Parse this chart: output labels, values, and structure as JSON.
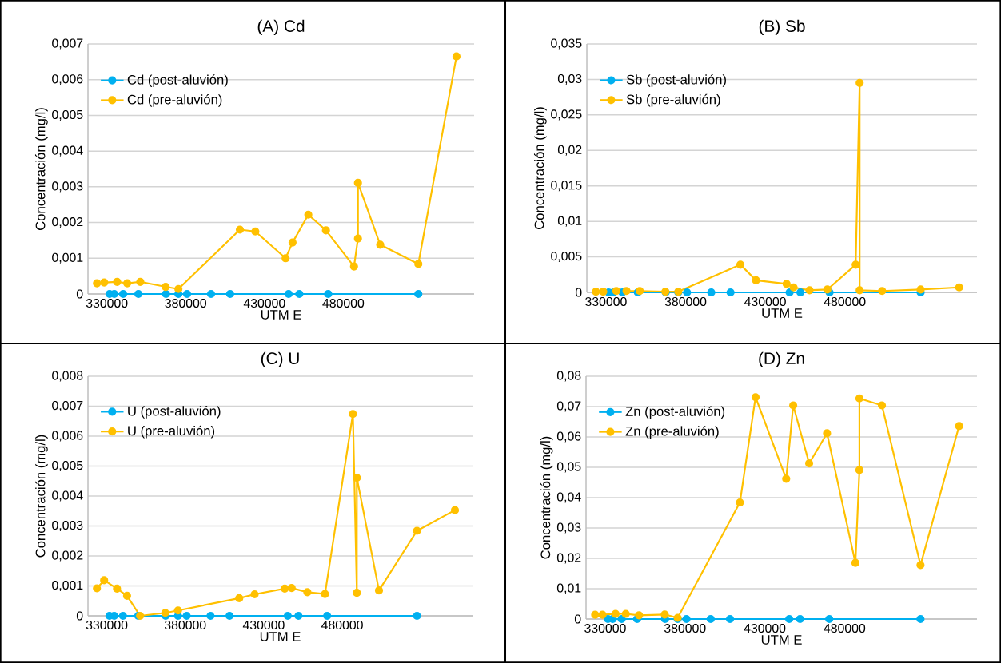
{
  "chart_data": [
    {
      "type": "line",
      "title": "(A) Cd",
      "xlabel": "UTM E",
      "ylabel": "Concentración (mg/l)",
      "xlim": [
        318000,
        563000
      ],
      "xticks": [
        330000,
        380000,
        430000,
        480000
      ],
      "ylim": [
        0,
        0.007
      ],
      "yticks": [
        0,
        {
          "value": 0.001,
          "label": "0,001"
        },
        {
          "value": 0.002,
          "label": "0,002"
        },
        {
          "value": 0.003,
          "label": "0,003"
        },
        {
          "value": 0.004,
          "label": "0,004"
        },
        {
          "value": 0.005,
          "label": "0,005"
        },
        {
          "value": 0.006,
          "label": "0,006"
        },
        {
          "value": 0.007,
          "label": "0,007"
        }
      ],
      "grid": "y",
      "legend": "top left",
      "marker": "circle",
      "line_style": "solid",
      "series": [
        {
          "name": "Cd (post-aluvión)",
          "color": "#00b0f0",
          "x": [
            331700,
            334700,
            340300,
            350000,
            367500,
            375400,
            380900,
            396100,
            408200,
            445300,
            452100,
            470400,
            527600
          ],
          "values": [
            0,
            0,
            0,
            0,
            0,
            0,
            0,
            0,
            0,
            0,
            0,
            0,
            0
          ]
        },
        {
          "name": "Cd (pre-aluvión)",
          "color": "#ffc000",
          "x": [
            323700,
            328300,
            336500,
            342900,
            351200,
            367300,
            375400,
            414400,
            424200,
            443400,
            447800,
            457800,
            469000,
            486800,
            489300,
            489300,
            503400,
            527600,
            551800
          ],
          "values": [
            0.0003,
            0.00032,
            0.00034,
            0.0003,
            0.00034,
            0.0002,
            0.00014,
            0.0018,
            0.00175,
            0.001,
            0.00144,
            0.00222,
            0.00178,
            0.00077,
            0.00155,
            0.00311,
            0.00138,
            0.00084,
            0.00665
          ]
        }
      ]
    },
    {
      "type": "line",
      "title": "(B) Sb",
      "xlabel": "UTM E",
      "ylabel": "Concentración (mg/l)",
      "xlim": [
        318000,
        563000
      ],
      "xticks": [
        330000,
        380000,
        430000,
        480000
      ],
      "ylim": [
        0,
        0.035
      ],
      "yticks": [
        0,
        {
          "value": 0.005,
          "label": "0,005"
        },
        {
          "value": 0.01,
          "label": "0,01"
        },
        {
          "value": 0.015,
          "label": "0,015"
        },
        {
          "value": 0.02,
          "label": "0,02"
        },
        {
          "value": 0.025,
          "label": "0,025"
        },
        {
          "value": 0.03,
          "label": "0,03"
        },
        {
          "value": 0.035,
          "label": "0,035"
        }
      ],
      "grid": "y",
      "legend": "top left",
      "marker": "circle",
      "line_style": "solid",
      "series": [
        {
          "name": "Sb (post-aluvión)",
          "color": "#00b0f0",
          "x": [
            331700,
            334700,
            340300,
            350000,
            367500,
            375400,
            380900,
            396100,
            408200,
            445300,
            452100,
            470400,
            527600
          ],
          "values": [
            0,
            0,
            0,
            0,
            0,
            0,
            0,
            0,
            0,
            0,
            0,
            0,
            0
          ]
        },
        {
          "name": "Sb (pre-aluvión)",
          "color": "#ffc000",
          "x": [
            323700,
            328300,
            336500,
            342900,
            351200,
            367300,
            375400,
            414400,
            424200,
            443400,
            447800,
            457800,
            469000,
            486800,
            489300,
            489300,
            503400,
            527600,
            551800
          ],
          "values": [
            0.0001,
            0.0001,
            0.0002,
            0.0002,
            0.0002,
            0.0001,
            0.0001,
            0.0039,
            0.0017,
            0.0012,
            0.0007,
            0.0003,
            0.0004,
            0.0039,
            0.0295,
            0.0003,
            0.0002,
            0.0004,
            0.0007
          ]
        }
      ]
    },
    {
      "type": "line",
      "title": "(C) U",
      "xlabel": "UTM E",
      "ylabel": "Concentración (mg/l)",
      "xlim": [
        318000,
        563000
      ],
      "xticks": [
        330000,
        380000,
        430000,
        480000
      ],
      "ylim": [
        0,
        0.008
      ],
      "yticks": [
        0,
        {
          "value": 0.001,
          "label": "0,001"
        },
        {
          "value": 0.002,
          "label": "0,002"
        },
        {
          "value": 0.003,
          "label": "0,003"
        },
        {
          "value": 0.004,
          "label": "0,004"
        },
        {
          "value": 0.005,
          "label": "0,005"
        },
        {
          "value": 0.006,
          "label": "0,006"
        },
        {
          "value": 0.007,
          "label": "0,007"
        },
        {
          "value": 0.008,
          "label": "0,008"
        }
      ],
      "grid": "y",
      "legend": "top left",
      "marker": "circle",
      "line_style": "solid",
      "series": [
        {
          "name": "U (post-aluvión)",
          "color": "#00b0f0",
          "x": [
            331700,
            334700,
            340300,
            350000,
            367500,
            375400,
            380900,
            396100,
            408200,
            445300,
            452100,
            470400,
            527600
          ],
          "values": [
            0,
            0,
            0,
            0,
            0,
            0,
            0,
            0,
            0,
            0,
            0,
            0,
            0
          ]
        },
        {
          "name": "U (pre-aluvión)",
          "color": "#ffc000",
          "x": [
            323700,
            328300,
            336500,
            342900,
            351200,
            367300,
            375400,
            414400,
            424200,
            443400,
            447800,
            457800,
            469000,
            486800,
            489300,
            489300,
            503400,
            527600,
            551800
          ],
          "values": [
            0.00092,
            0.00119,
            0.00091,
            0.00067,
            0,
            0.0001,
            0.00018,
            0.00059,
            0.00072,
            0.00091,
            0.00093,
            0.00079,
            0.00073,
            0.00674,
            0.00077,
            0.00461,
            0.00085,
            0.00284,
            0.00353
          ]
        }
      ]
    },
    {
      "type": "line",
      "title": "(D) Zn",
      "xlabel": "UTM E",
      "ylabel": "Concentración (mg/l)",
      "xlim": [
        318000,
        563000
      ],
      "xticks": [
        330000,
        380000,
        430000,
        480000
      ],
      "ylim": [
        0,
        0.08
      ],
      "yticks": [
        0,
        {
          "value": 0.01,
          "label": "0,01"
        },
        {
          "value": 0.02,
          "label": "0,02"
        },
        {
          "value": 0.03,
          "label": "0,03"
        },
        {
          "value": 0.04,
          "label": "0,04"
        },
        {
          "value": 0.05,
          "label": "0,05"
        },
        {
          "value": 0.06,
          "label": "0,06"
        },
        {
          "value": 0.07,
          "label": "0,07"
        },
        {
          "value": 0.08,
          "label": "0,08"
        }
      ],
      "grid": "y",
      "legend": "top left",
      "marker": "circle",
      "line_style": "solid",
      "series": [
        {
          "name": "Zn (post-aluvión)",
          "color": "#00b0f0",
          "x": [
            331700,
            334700,
            340300,
            350000,
            367500,
            375400,
            380900,
            396100,
            408200,
            445300,
            452100,
            470400,
            527600
          ],
          "values": [
            0,
            0,
            0,
            0,
            0,
            0,
            0,
            0,
            0,
            0,
            0,
            0,
            0
          ]
        },
        {
          "name": "Zn (pre-aluvión)",
          "color": "#ffc000",
          "x": [
            323700,
            328300,
            336500,
            342900,
            351200,
            367300,
            375400,
            414400,
            424200,
            443400,
            447800,
            457800,
            469000,
            486800,
            489300,
            489300,
            503400,
            527600,
            551800
          ],
          "values": [
            0.0014,
            0.0014,
            0.0017,
            0.0017,
            0.0012,
            0.0015,
            0.0004,
            0.0384,
            0.0731,
            0.0462,
            0.0704,
            0.0513,
            0.0612,
            0.0185,
            0.0491,
            0.0727,
            0.0704,
            0.0178,
            0.0636
          ]
        }
      ]
    }
  ]
}
